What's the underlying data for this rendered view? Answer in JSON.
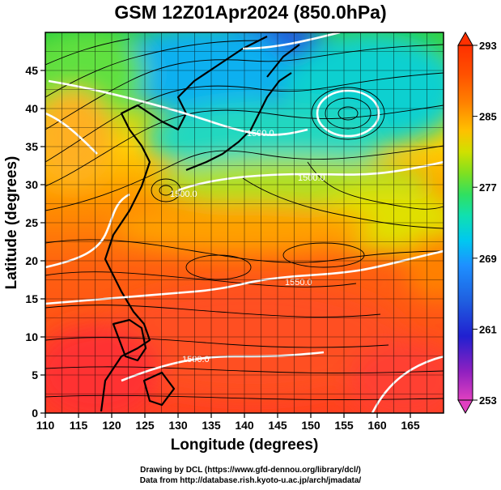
{
  "title": "GSM 12Z01Apr2024 (850.0hPa)",
  "xaxis": {
    "label": "Longitude (degrees)",
    "min": 110,
    "max": 170,
    "ticks": [
      110,
      115,
      120,
      125,
      130,
      135,
      140,
      145,
      150,
      155,
      160,
      165
    ]
  },
  "yaxis": {
    "label": "Latitude  (degrees)",
    "min": 0,
    "max": 50,
    "ticks": [
      0,
      5,
      10,
      15,
      20,
      25,
      30,
      35,
      40,
      45
    ]
  },
  "colorbar": {
    "min": 253,
    "max": 293,
    "ticks": [
      253,
      261,
      269,
      277,
      285,
      293
    ],
    "colors": [
      "#e040c0",
      "#9020c0",
      "#2020d0",
      "#1f5fe0",
      "#1e90ff",
      "#00c8f0",
      "#10e0b0",
      "#30e060",
      "#80e020",
      "#d0e000",
      "#ffc000",
      "#ff8000",
      "#ff5000",
      "#ff3000"
    ]
  },
  "contours": {
    "color": "#ffffff",
    "labels": [
      "1500.0",
      "1500.0",
      "1500.0",
      "1550.0",
      "1500.0"
    ]
  },
  "credits": {
    "line1": "Drawing by DCL (https://www.gfd-dennou.org/library/dcl/)",
    "line2": "Data from http://database.rish.kyoto-u.ac.jp/arch/jmadata/"
  },
  "chart_data": {
    "type": "heatmap",
    "title": "GSM 12Z01Apr2024 (850.0hPa)",
    "xlabel": "Longitude (degrees)",
    "ylabel": "Latitude  (degrees)",
    "xlim": [
      110,
      170
    ],
    "ylim": [
      0,
      50
    ],
    "colorbar_range": [
      253,
      293
    ],
    "colorbar_ticks": [
      253,
      261,
      269,
      277,
      285,
      293
    ],
    "grid": true,
    "contour_labels": [
      "1500.0",
      "1550.0"
    ],
    "overlay": "streamlines",
    "coastlines": true
  }
}
